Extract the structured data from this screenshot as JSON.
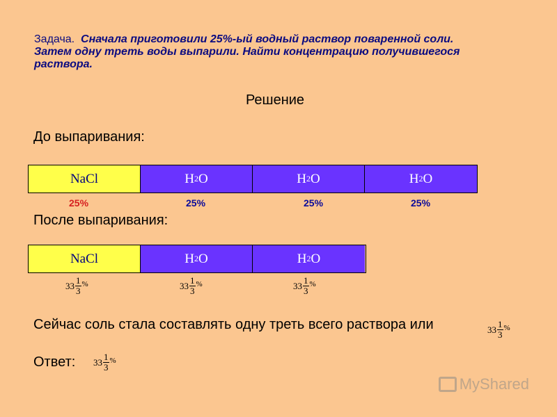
{
  "task": {
    "label": "Задача.",
    "text": "Сначала приготовили 25%-ый водный раствор поваренной соли. Затем одну треть воды выпарили. Найти концентрацию получившегося раствора."
  },
  "solution_title": "Решение",
  "before": {
    "label": "До выпаривания:",
    "cells": [
      {
        "formula": "NaCl",
        "sub": "",
        "tail": "",
        "percent": "25%",
        "percent_color": "#d62020"
      },
      {
        "formula": "H",
        "sub": "2",
        "tail": "O",
        "percent": "25%",
        "percent_color": "#0b0b9a"
      },
      {
        "formula": "H",
        "sub": "2",
        "tail": "O",
        "percent": "25%",
        "percent_color": "#0b0b9a"
      },
      {
        "formula": "H",
        "sub": "2",
        "tail": "O",
        "percent": "25%",
        "percent_color": "#0b0b9a"
      }
    ]
  },
  "after": {
    "label": "После выпаривания:",
    "cells": [
      {
        "formula": "NaCl",
        "sub": "",
        "tail": ""
      },
      {
        "formula": "H",
        "sub": "2",
        "tail": "O"
      },
      {
        "formula": "H",
        "sub": "2",
        "tail": "O"
      }
    ],
    "fraction": {
      "whole": "33",
      "numerator": "1",
      "denominator": "3",
      "sign": "%"
    }
  },
  "conclusion": "Сейчас соль стала составлять одну треть всего раствора или",
  "answer_label": "Ответ:",
  "watermark": "MyShared",
  "colors": {
    "background": "#fbc690",
    "salt": "#ffff4a",
    "water": "#6a33ff"
  }
}
